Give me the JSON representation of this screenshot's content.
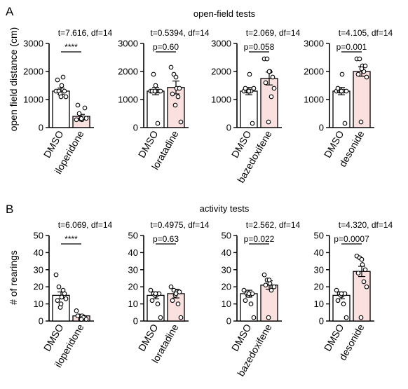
{
  "colors": {
    "dmso_fill": "#ffffff",
    "drug_fill": "#fbe0e0",
    "stroke": "#000000"
  },
  "panels": [
    {
      "letter": "A",
      "title": "open-field tests",
      "ylabel": "open field distance (cm)"
    },
    {
      "letter": "B",
      "title": "activity tests",
      "ylabel": "# of  rearings"
    }
  ],
  "chart_data": [
    {
      "type": "bar",
      "panel": "A",
      "title": "t=7.616, df=14",
      "categories": [
        "DMSO",
        "iloperidone"
      ],
      "values": [
        1300,
        400
      ],
      "sem": [
        110,
        70
      ],
      "points": [
        [
          1300,
          1300,
          1500,
          1300,
          1700,
          1800,
          1100,
          1200,
          1100
        ],
        [
          280,
          500,
          280,
          700,
          800,
          350,
          330,
          300,
          320
        ]
      ],
      "significance": "****",
      "ylim": [
        0,
        3000
      ],
      "yticks": [
        0,
        1000,
        2000,
        3000
      ]
    },
    {
      "type": "bar",
      "panel": "A",
      "title": "t=0.5394, df=14",
      "categories": [
        "DMSO",
        "loratadine"
      ],
      "values": [
        1300,
        1430
      ],
      "sem": [
        130,
        230
      ],
      "points": [
        [
          1300,
          1900,
          1300,
          1300,
          1300,
          150,
          1300,
          1300,
          1500
        ],
        [
          2150,
          1900,
          1400,
          1400,
          1200,
          1100,
          200,
          800,
          1800
        ]
      ],
      "significance": "p=0.60",
      "ylim": [
        0,
        3000
      ],
      "yticks": [
        0,
        1000,
        2000,
        3000
      ]
    },
    {
      "type": "bar",
      "panel": "A",
      "title": "t=2.069, df=14",
      "categories": [
        "DMSO",
        "bazedoxifene"
      ],
      "values": [
        1300,
        1750
      ],
      "sem": [
        130,
        230
      ],
      "points": [
        [
          1300,
          1300,
          1900,
          150,
          1400,
          1300,
          1400,
          1300,
          1300
        ],
        [
          2450,
          2450,
          2000,
          1800,
          1600,
          1100,
          1400,
          200,
          2000
        ]
      ],
      "significance": "p=0.058",
      "ylim": [
        0,
        3000
      ],
      "yticks": [
        0,
        1000,
        2000,
        3000
      ]
    },
    {
      "type": "bar",
      "panel": "A",
      "title": "t=4.105, df=14",
      "categories": [
        "DMSO",
        "desonide"
      ],
      "values": [
        1300,
        2000
      ],
      "sem": [
        130,
        170
      ],
      "points": [
        [
          1300,
          1300,
          1900,
          150,
          1400,
          1300,
          1300,
          1300,
          1300
        ],
        [
          2450,
          2450,
          2200,
          2200,
          1900,
          2000,
          1800,
          200,
          2100
        ]
      ],
      "significance": "p=0.001",
      "ylim": [
        0,
        3000
      ],
      "yticks": [
        0,
        1000,
        2000,
        3000
      ]
    },
    {
      "type": "bar",
      "panel": "B",
      "title": "t=6.069, df=14",
      "categories": [
        "DMSO",
        "iloperidone"
      ],
      "values": [
        15,
        3
      ],
      "sem": [
        2,
        0.5
      ],
      "points": [
        [
          27,
          20,
          14,
          16,
          12,
          18,
          13,
          8,
          10
        ],
        [
          6,
          3,
          3,
          2,
          3,
          2,
          1,
          1,
          1
        ]
      ],
      "significance": "****",
      "ylim": [
        0,
        50
      ],
      "yticks": [
        0,
        10,
        20,
        30,
        40,
        50
      ]
    },
    {
      "type": "bar",
      "panel": "B",
      "title": "t=0.4975, df=14",
      "categories": [
        "DMSO",
        "loratadine"
      ],
      "values": [
        15,
        16
      ],
      "sem": [
        2,
        2.5
      ],
      "points": [
        [
          18,
          16,
          15,
          16,
          12,
          10,
          2,
          15,
          16
        ],
        [
          20,
          18,
          17,
          17,
          12,
          10,
          2,
          15,
          16
        ]
      ],
      "significance": "p=0.63",
      "ylim": [
        0,
        50
      ],
      "yticks": [
        0,
        10,
        20,
        30,
        40,
        50
      ]
    },
    {
      "type": "bar",
      "panel": "B",
      "title": "t=2.562, df=14",
      "categories": [
        "DMSO",
        "bazedoxifene"
      ],
      "values": [
        16,
        21
      ],
      "sem": [
        2,
        2.5
      ],
      "points": [
        [
          18,
          16,
          15,
          16,
          12,
          10,
          2,
          15,
          16
        ],
        [
          27,
          24,
          22,
          20,
          21,
          18,
          20,
          2,
          24
        ]
      ],
      "significance": "p=0.022",
      "ylim": [
        0,
        50
      ],
      "yticks": [
        0,
        10,
        20,
        30,
        40,
        50
      ]
    },
    {
      "type": "bar",
      "panel": "B",
      "title": "t=4.320, df=14",
      "categories": [
        "DMSO",
        "desonide"
      ],
      "values": [
        15,
        29
      ],
      "sem": [
        2,
        3
      ],
      "points": [
        [
          18,
          16,
          15,
          16,
          12,
          10,
          2,
          15,
          16
        ],
        [
          38,
          37,
          33,
          30,
          28,
          23,
          20,
          2,
          36
        ]
      ],
      "significance": "p=0.0007",
      "ylim": [
        0,
        50
      ],
      "yticks": [
        0,
        10,
        20,
        30,
        40,
        50
      ]
    }
  ]
}
